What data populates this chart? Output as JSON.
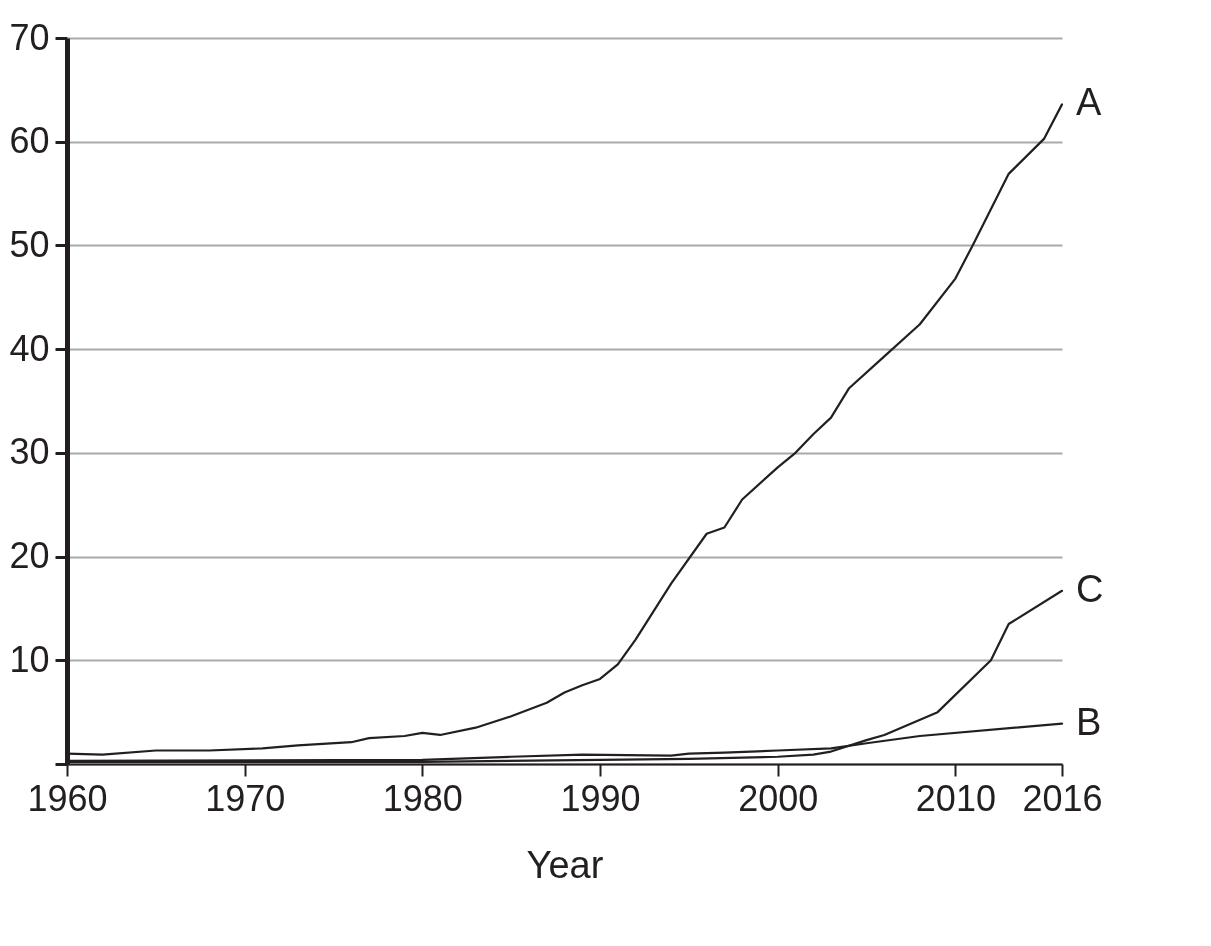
{
  "chart_data": {
    "type": "line",
    "xlabel": "Year",
    "xlim": [
      1960,
      2016
    ],
    "xticks": [
      1960,
      1970,
      1980,
      1990,
      2000,
      2010,
      2016
    ],
    "ylim": [
      0,
      70
    ],
    "yticks": [
      {
        "value": 0,
        "label": null
      },
      10,
      20,
      30,
      40,
      50,
      60,
      70
    ],
    "grid": "y",
    "legend": false,
    "series": [
      {
        "name": "A",
        "color": "#231f20",
        "x": [
          1960,
          1962,
          1965,
          1968,
          1971,
          1973,
          1976,
          1977,
          1979,
          1980,
          1981,
          1983,
          1985,
          1987,
          1988,
          1989,
          1990,
          1991,
          1992,
          1994,
          1996,
          1997,
          1998,
          2000,
          2001,
          2002,
          2003,
          2004,
          2006,
          2008,
          2010,
          2011,
          2013,
          2015,
          2016
        ],
        "values": [
          1.0,
          0.9,
          1.3,
          1.3,
          1.5,
          1.8,
          2.1,
          2.5,
          2.7,
          3.0,
          2.8,
          3.5,
          4.6,
          5.9,
          6.9,
          7.6,
          8.2,
          9.6,
          12,
          17.4,
          22.2,
          22.8,
          25.5,
          28.6,
          30,
          31.8,
          33.4,
          36.2,
          39.3,
          42.4,
          46.8,
          50.1,
          56.9,
          60.3,
          63.6
        ]
      },
      {
        "name": "B",
        "color": "#231f20",
        "x": [
          1960,
          1980,
          1985,
          1989,
          1994,
          1995,
          1997,
          2000,
          2003,
          2005,
          2008,
          2016
        ],
        "values": [
          0.3,
          0.4,
          0.7,
          0.9,
          0.8,
          1.0,
          1.1,
          1.3,
          1.5,
          2.0,
          2.7,
          3.9
        ]
      },
      {
        "name": "C",
        "color": "#231f20",
        "x": [
          1960,
          1980,
          1990,
          1995,
          2000,
          2002,
          2003,
          2005,
          2006,
          2009,
          2012,
          2013,
          2016
        ],
        "values": [
          0.2,
          0.2,
          0.4,
          0.5,
          0.7,
          0.9,
          1.2,
          2.3,
          2.8,
          5.0,
          10,
          13.5,
          16.7
        ]
      }
    ]
  }
}
